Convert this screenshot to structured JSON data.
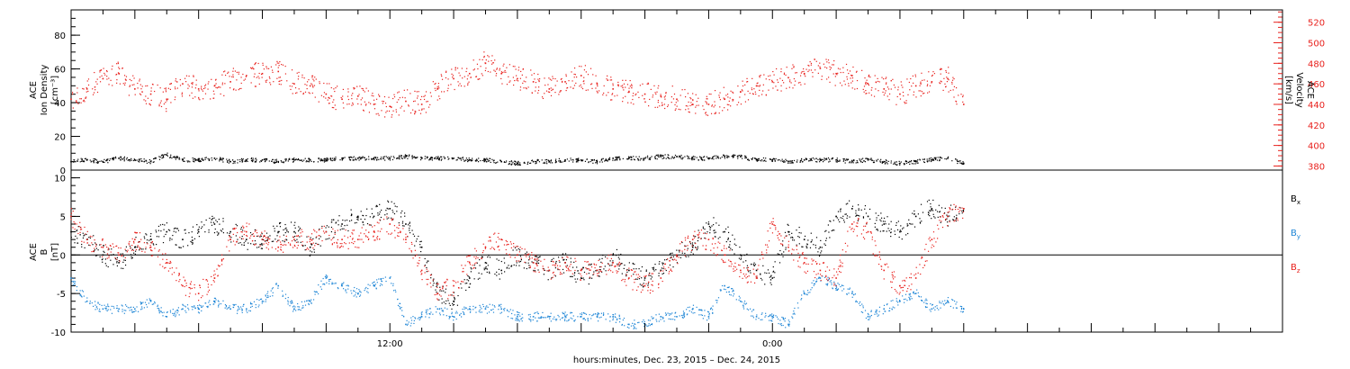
{
  "chart_data": [
    {
      "type": "scatter",
      "panel": "top",
      "ylabel_lines": [
        "ACE",
        "Ion Density",
        "[cm⁻³]"
      ],
      "y2label_lines": [
        "ACE",
        "Velocity",
        "[km/s]"
      ],
      "ylim": [
        0,
        95
      ],
      "yticks": [
        0,
        20,
        40,
        60,
        80
      ],
      "y2lim": [
        376,
        532
      ],
      "y2ticks": [
        380,
        400,
        420,
        440,
        460,
        480,
        500,
        520
      ],
      "colors": {
        "density": "#000000",
        "velocity": "#e8201c"
      },
      "series": [
        {
          "name": "Ion Density",
          "axis": "left",
          "color": "#000000",
          "x": [
            0.0,
            0.5,
            1.0,
            1.5,
            2.0,
            2.5,
            3.0,
            3.5,
            4.0,
            4.5,
            5.0,
            5.5,
            6.0,
            6.5,
            7.0,
            7.5,
            8.0,
            8.5,
            9.0,
            9.5,
            10.0,
            10.5,
            11.0,
            11.5,
            12.0,
            12.5,
            13.0,
            13.5,
            14.0,
            14.5,
            15.0,
            15.5,
            16.0,
            16.5,
            17.0,
            17.5,
            18.0,
            18.5,
            19.0,
            19.5,
            20.0,
            20.5,
            21.0,
            21.5,
            22.0,
            22.5,
            23.0,
            23.5,
            24.0,
            24.5,
            25.0,
            25.5,
            26.0,
            26.5,
            27.0,
            27.5,
            28.0
          ],
          "values": [
            5,
            6,
            5,
            7,
            6,
            5,
            9,
            6,
            6,
            7,
            5,
            6,
            6,
            5,
            6,
            6,
            6,
            7,
            7,
            7,
            7,
            8,
            7,
            7,
            7,
            6,
            6,
            5,
            4,
            5,
            5,
            6,
            6,
            5,
            7,
            7,
            7,
            8,
            8,
            7,
            7,
            8,
            8,
            6,
            6,
            5,
            6,
            6,
            6,
            5,
            6,
            5,
            4,
            5,
            6,
            7,
            4
          ]
        },
        {
          "name": "Velocity",
          "axis": "right",
          "color": "#e8201c",
          "x": [
            0.0,
            0.5,
            1.0,
            1.5,
            2.0,
            2.5,
            3.0,
            3.5,
            4.0,
            4.5,
            5.0,
            5.5,
            6.0,
            6.5,
            7.0,
            7.5,
            8.0,
            8.5,
            9.0,
            9.5,
            10.0,
            10.5,
            11.0,
            11.5,
            12.0,
            12.5,
            13.0,
            13.5,
            14.0,
            14.5,
            15.0,
            15.5,
            16.0,
            16.5,
            17.0,
            17.5,
            18.0,
            18.5,
            19.0,
            19.5,
            20.0,
            20.5,
            21.0,
            21.5,
            22.0,
            22.5,
            23.0,
            23.5,
            24.0,
            24.5,
            25.0,
            25.5,
            26.0,
            26.5,
            27.0,
            27.5,
            28.0
          ],
          "values": [
            445,
            455,
            465,
            470,
            455,
            450,
            445,
            460,
            455,
            458,
            462,
            468,
            470,
            472,
            460,
            458,
            450,
            445,
            448,
            440,
            438,
            443,
            440,
            455,
            465,
            470,
            480,
            470,
            465,
            462,
            455,
            462,
            468,
            460,
            455,
            452,
            450,
            448,
            445,
            440,
            440,
            445,
            452,
            458,
            462,
            466,
            470,
            475,
            470,
            468,
            460,
            455,
            450,
            458,
            462,
            465,
            440
          ]
        }
      ]
    },
    {
      "type": "scatter",
      "panel": "bottom",
      "ylabel_lines": [
        "ACE",
        "B",
        "[nT]"
      ],
      "ylim": [
        -10,
        11
      ],
      "yticks": [
        -10,
        -5,
        0,
        5,
        10
      ],
      "zero_line": true,
      "xticks": [
        {
          "h": 10,
          "label": "12:00"
        },
        {
          "h": 22,
          "label": "0:00"
        }
      ],
      "xlim": [
        0,
        38
      ],
      "xlabel": "hours:minutes, Dec. 23, 2015 – Dec. 24, 2015",
      "legend": "right",
      "series": [
        {
          "name": "Bx",
          "color": "#000000",
          "x": [
            0.0,
            0.5,
            1.0,
            1.5,
            2.0,
            2.5,
            3.0,
            3.5,
            4.0,
            4.5,
            5.0,
            5.5,
            6.0,
            6.5,
            7.0,
            7.5,
            8.0,
            8.5,
            9.0,
            9.5,
            10.0,
            10.5,
            11.0,
            11.5,
            12.0,
            12.5,
            13.0,
            13.5,
            14.0,
            14.5,
            15.0,
            15.5,
            16.0,
            16.5,
            17.0,
            17.5,
            18.0,
            18.5,
            19.0,
            19.5,
            20.0,
            20.5,
            21.0,
            21.5,
            22.0,
            22.5,
            23.0,
            23.5,
            24.0,
            24.5,
            25.0,
            25.5,
            26.0,
            26.5,
            27.0,
            27.5,
            28.0
          ],
          "values": [
            3,
            2,
            0,
            -1,
            1,
            2,
            3,
            2,
            3,
            4,
            3,
            2,
            2,
            3,
            3,
            1,
            3,
            4,
            5,
            5,
            6,
            4,
            1,
            -5,
            -6,
            -3,
            -1,
            -2,
            0,
            -1,
            -2,
            -1,
            -3,
            -2,
            0,
            -2,
            -3,
            -2,
            0,
            1,
            4,
            3,
            0,
            -2,
            -3,
            3,
            2,
            1,
            5,
            6,
            5,
            4,
            3,
            5,
            6,
            5,
            6
          ]
        },
        {
          "name": "By",
          "color": "#1f86d6",
          "x": [
            0.0,
            0.5,
            1.0,
            1.5,
            2.0,
            2.5,
            3.0,
            3.5,
            4.0,
            4.5,
            5.0,
            5.5,
            6.0,
            6.5,
            7.0,
            7.5,
            8.0,
            8.5,
            9.0,
            9.5,
            10.0,
            10.5,
            11.0,
            11.5,
            12.0,
            12.5,
            13.0,
            13.5,
            14.0,
            14.5,
            15.0,
            15.5,
            16.0,
            16.5,
            17.0,
            17.5,
            18.0,
            18.5,
            19.0,
            19.5,
            20.0,
            20.5,
            21.0,
            21.5,
            22.0,
            22.5,
            23.0,
            23.5,
            24.0,
            24.5,
            25.0,
            25.5,
            26.0,
            26.5,
            27.0,
            27.5,
            28.0
          ],
          "values": [
            -3,
            -6,
            -7,
            -7,
            -7,
            -6,
            -8,
            -7,
            -7,
            -6,
            -7,
            -7,
            -6,
            -4,
            -7,
            -6,
            -3,
            -4,
            -5,
            -4,
            -3,
            -9,
            -8,
            -7,
            -8,
            -7,
            -7,
            -7,
            -8,
            -8,
            -8,
            -8,
            -8,
            -8,
            -8,
            -9,
            -9,
            -8,
            -8,
            -7,
            -8,
            -4,
            -6,
            -8,
            -8,
            -9,
            -5,
            -3,
            -4,
            -5,
            -8,
            -7,
            -6,
            -5,
            -7,
            -6,
            -7
          ]
        },
        {
          "name": "Bz",
          "color": "#e8201c",
          "x": [
            0.0,
            0.5,
            1.0,
            1.5,
            2.0,
            2.5,
            3.0,
            3.5,
            4.0,
            4.5,
            5.0,
            5.5,
            6.0,
            6.5,
            7.0,
            7.5,
            8.0,
            8.5,
            9.0,
            9.5,
            10.0,
            10.5,
            11.0,
            11.5,
            12.0,
            12.5,
            13.0,
            13.5,
            14.0,
            14.5,
            15.0,
            15.5,
            16.0,
            16.5,
            17.0,
            17.5,
            18.0,
            18.5,
            19.0,
            19.5,
            20.0,
            20.5,
            21.0,
            21.5,
            22.0,
            22.5,
            23.0,
            23.5,
            24.0,
            24.5,
            25.0,
            25.5,
            26.0,
            26.5,
            27.0,
            27.5,
            28.0
          ],
          "values": [
            5,
            2,
            1,
            0,
            2,
            1,
            -1,
            -4,
            -5,
            -3,
            2,
            3,
            2,
            1,
            2,
            2,
            3,
            2,
            2,
            3,
            4,
            2,
            -2,
            -5,
            -4,
            -1,
            1,
            2,
            0,
            -1,
            -2,
            -1,
            -2,
            -2,
            -1,
            -3,
            -4,
            -3,
            0,
            2,
            2,
            0,
            -2,
            -3,
            4,
            1,
            -1,
            -2,
            -3,
            4,
            3,
            -2,
            -4,
            -3,
            2,
            5,
            6
          ]
        }
      ]
    }
  ],
  "legend_labels": {
    "bx": {
      "base": "B",
      "sub": "x"
    },
    "by": {
      "base": "B",
      "sub": "y"
    },
    "bz": {
      "base": "B",
      "sub": "z"
    }
  }
}
